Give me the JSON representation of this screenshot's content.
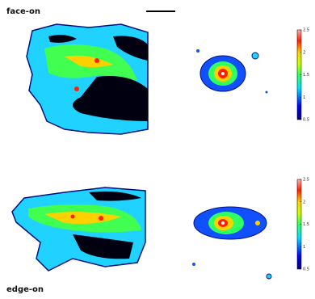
{
  "panels": [
    {
      "label": "face-on"
    },
    {
      "label": "edge-on"
    }
  ],
  "colorbars": [
    {
      "lim": [
        0.5,
        2.5
      ],
      "ticks": [
        0.5,
        1,
        1.5,
        2,
        2.5
      ]
    },
    {
      "lim": [
        0.5,
        2.5
      ],
      "ticks": [
        0.5,
        1,
        1.5,
        2,
        2.5
      ]
    }
  ]
}
